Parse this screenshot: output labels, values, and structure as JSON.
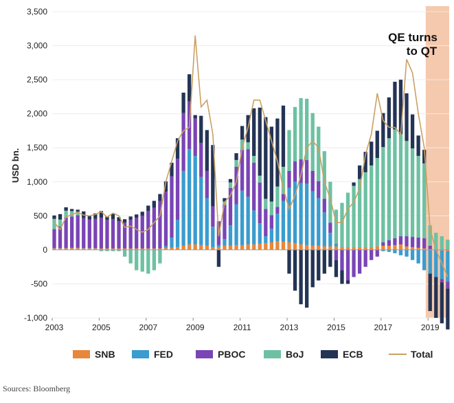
{
  "chart_data": {
    "type": "bar",
    "stacked": true,
    "ylabel": "USD bn.",
    "ylim": [
      -1000,
      3500
    ],
    "yticks": [
      -1000,
      -500,
      0,
      500,
      1000,
      1500,
      2000,
      2500,
      3000,
      3500
    ],
    "ytick_labels": [
      "-1,000",
      "-500",
      "0",
      "500",
      "1,000",
      "1,500",
      "2,000",
      "2,500",
      "3,000",
      "3,500"
    ],
    "xlim": [
      2003,
      2019.9
    ],
    "xticks": [
      2003,
      2005,
      2007,
      2009,
      2011,
      2013,
      2015,
      2017,
      2019
    ],
    "xtick_labels": [
      "2003",
      "2005",
      "2007",
      "2009",
      "2011",
      "2013",
      "2015",
      "2017",
      "2019"
    ],
    "annotation": {
      "line1": "QE turns",
      "line2": "to QT"
    },
    "forecast_shading": {
      "x_start": 2018.9,
      "x_end": 2019.9,
      "color": "#f5c9ad"
    },
    "colors": {
      "SNB": "#e8873a",
      "FED": "#3a9ccf",
      "PBOC": "#7a45b5",
      "BoJ": "#6dc1a2",
      "ECB": "#243455",
      "Total": "#c9a063"
    },
    "series_names": [
      "SNB",
      "FED",
      "PBOC",
      "BoJ",
      "ECB",
      "Total"
    ],
    "x": [
      2003.0,
      2003.25,
      2003.5,
      2003.75,
      2004.0,
      2004.25,
      2004.5,
      2004.75,
      2005.0,
      2005.25,
      2005.5,
      2005.75,
      2006.0,
      2006.25,
      2006.5,
      2006.75,
      2007.0,
      2007.25,
      2007.5,
      2007.75,
      2008.0,
      2008.25,
      2008.5,
      2008.75,
      2009.0,
      2009.25,
      2009.5,
      2009.75,
      2010.0,
      2010.25,
      2010.5,
      2010.75,
      2011.0,
      2011.25,
      2011.5,
      2011.75,
      2012.0,
      2012.25,
      2012.5,
      2012.75,
      2013.0,
      2013.25,
      2013.5,
      2013.75,
      2014.0,
      2014.25,
      2014.5,
      2014.75,
      2015.0,
      2015.25,
      2015.5,
      2015.75,
      2016.0,
      2016.25,
      2016.5,
      2016.75,
      2017.0,
      2017.25,
      2017.5,
      2017.75,
      2018.0,
      2018.25,
      2018.5,
      2018.75,
      2019.0,
      2019.25,
      2019.5,
      2019.75
    ],
    "series": [
      {
        "name": "SNB",
        "values": [
          20,
          20,
          20,
          25,
          25,
          20,
          20,
          20,
          20,
          20,
          20,
          20,
          20,
          20,
          20,
          20,
          20,
          20,
          20,
          25,
          30,
          40,
          60,
          80,
          80,
          70,
          60,
          40,
          40,
          60,
          60,
          70,
          70,
          80,
          80,
          90,
          100,
          110,
          130,
          120,
          110,
          100,
          80,
          70,
          60,
          60,
          50,
          50,
          50,
          40,
          40,
          40,
          40,
          40,
          40,
          50,
          60,
          60,
          70,
          80,
          50,
          40,
          30,
          20,
          10,
          0,
          -10,
          -20
        ]
      },
      {
        "name": "FED",
        "values": [
          5,
          5,
          5,
          5,
          5,
          5,
          5,
          5,
          0,
          0,
          0,
          0,
          0,
          0,
          0,
          0,
          0,
          0,
          0,
          30,
          150,
          400,
          1100,
          1400,
          1300,
          1000,
          700,
          300,
          30,
          100,
          300,
          600,
          800,
          700,
          500,
          300,
          100,
          200,
          400,
          600,
          800,
          900,
          900,
          900,
          800,
          700,
          500,
          200,
          40,
          0,
          0,
          0,
          0,
          0,
          0,
          0,
          -20,
          -30,
          -50,
          -80,
          -100,
          -150,
          -200,
          -300,
          -350,
          -400,
          -420,
          -450
        ]
      },
      {
        "name": "PBOC",
        "values": [
          280,
          320,
          450,
          460,
          480,
          440,
          420,
          430,
          450,
          420,
          430,
          400,
          380,
          420,
          450,
          480,
          550,
          600,
          700,
          800,
          900,
          900,
          850,
          700,
          550,
          500,
          400,
          300,
          350,
          500,
          550,
          550,
          600,
          700,
          700,
          600,
          400,
          200,
          100,
          100,
          250,
          300,
          350,
          350,
          300,
          250,
          200,
          150,
          -150,
          -300,
          -450,
          -400,
          -350,
          -250,
          -150,
          -100,
          50,
          80,
          100,
          120,
          150,
          150,
          150,
          150,
          50,
          0,
          -50,
          -100
        ]
      },
      {
        "name": "BoJ",
        "values": [
          150,
          100,
          100,
          80,
          50,
          0,
          0,
          0,
          -20,
          -20,
          -20,
          -20,
          -100,
          -200,
          -300,
          -320,
          -350,
          -300,
          -200,
          0,
          0,
          0,
          0,
          0,
          0,
          0,
          0,
          0,
          0,
          50,
          80,
          100,
          150,
          100,
          100,
          100,
          150,
          200,
          300,
          400,
          600,
          800,
          900,
          900,
          850,
          800,
          700,
          600,
          500,
          650,
          800,
          900,
          1000,
          1100,
          1200,
          1300,
          1400,
          1500,
          1600,
          1500,
          1400,
          1300,
          1200,
          1100,
          300,
          250,
          200,
          150
        ]
      },
      {
        "name": "ECB",
        "values": [
          50,
          80,
          50,
          30,
          30,
          100,
          50,
          80,
          100,
          50,
          80,
          60,
          50,
          50,
          50,
          60,
          80,
          100,
          100,
          150,
          200,
          300,
          300,
          400,
          50,
          400,
          600,
          900,
          -250,
          50,
          50,
          100,
          200,
          400,
          700,
          1000,
          1200,
          1100,
          1000,
          900,
          -350,
          -600,
          -800,
          -850,
          -550,
          -450,
          -350,
          -250,
          -250,
          -200,
          -50,
          50,
          200,
          300,
          350,
          400,
          500,
          600,
          700,
          800,
          700,
          500,
          300,
          200,
          -550,
          -600,
          -600,
          -600
        ]
      },
      {
        "name": "Total",
        "values": [
          400,
          300,
          480,
          520,
          550,
          510,
          500,
          520,
          560,
          480,
          540,
          500,
          330,
          350,
          300,
          260,
          300,
          400,
          500,
          1000,
          1300,
          1600,
          1750,
          1800,
          3150,
          2100,
          2200,
          1700,
          200,
          700,
          800,
          1000,
          1500,
          1800,
          2200,
          2200,
          1900,
          1600,
          1300,
          900,
          600,
          800,
          1100,
          1500,
          1600,
          1500,
          1000,
          750,
          400,
          400,
          600,
          700,
          900,
          1400,
          1700,
          2300,
          1900,
          1800,
          1800,
          1700,
          2800,
          2600,
          2000,
          1500,
          300,
          0,
          -200,
          -400
        ]
      }
    ]
  },
  "legend": {
    "items": [
      {
        "label": "SNB",
        "key": "SNB",
        "kind": "bar"
      },
      {
        "label": "FED",
        "key": "FED",
        "kind": "bar"
      },
      {
        "label": "PBOC",
        "key": "PBOC",
        "kind": "bar"
      },
      {
        "label": "BoJ",
        "key": "BoJ",
        "kind": "bar"
      },
      {
        "label": "ECB",
        "key": "ECB",
        "kind": "bar"
      },
      {
        "label": "Total",
        "key": "Total",
        "kind": "line"
      }
    ]
  },
  "source_note": "Sources: Bloomberg"
}
